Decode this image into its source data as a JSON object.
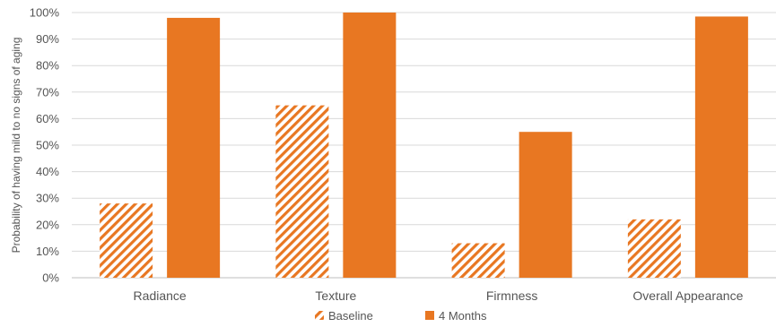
{
  "chart_data": {
    "type": "bar",
    "categories": [
      "Radiance",
      "Texture",
      "Firmness",
      "Overall Appearance"
    ],
    "series": [
      {
        "name": "Baseline",
        "values": [
          28,
          65,
          13,
          22
        ],
        "fill": "hatched"
      },
      {
        "name": "4 Months",
        "values": [
          98,
          100,
          55,
          98.5
        ],
        "fill": "solid"
      }
    ],
    "ylabel": "Probability of having mild to no signs of aging",
    "xlabel": "",
    "ylim": [
      0,
      100
    ],
    "yticks": [
      0,
      10,
      20,
      30,
      40,
      50,
      60,
      70,
      80,
      90,
      100
    ],
    "ytick_suffix": "%",
    "grid": true,
    "legend_position": "bottom",
    "colors": {
      "accent": "#E87722",
      "grid": "#d9d9d9",
      "text": "#555555"
    }
  }
}
